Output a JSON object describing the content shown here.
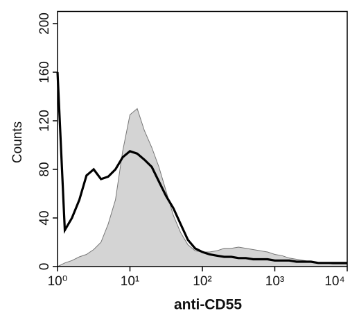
{
  "chart_data": {
    "type": "line",
    "xlabel": "anti-CD55",
    "ylabel": "Counts",
    "xscale": "log",
    "x": [
      1,
      1.26,
      1.58,
      2,
      2.51,
      3.16,
      3.98,
      5.01,
      6.31,
      7.94,
      10,
      12.6,
      15.8,
      20,
      25.1,
      31.6,
      39.8,
      50.1,
      63.1,
      79.4,
      100,
      126,
      158,
      200,
      251,
      316,
      398,
      501,
      631,
      794,
      1000,
      1259,
      1585,
      1995,
      2512,
      3162,
      3981,
      5012,
      6310,
      7943,
      10000
    ],
    "series": [
      {
        "color": "#777777",
        "fill": "#d4d4d4",
        "values": [
          0,
          3,
          5,
          8,
          10,
          14,
          20,
          35,
          55,
          95,
          125,
          130,
          112,
          98,
          82,
          62,
          42,
          28,
          18,
          13,
          12,
          12,
          13,
          15,
          15,
          16,
          15,
          14,
          13,
          12,
          10,
          9,
          7,
          6,
          5,
          4,
          3,
          3,
          2,
          2,
          2
        ]
      },
      {
        "color": "#000000",
        "values": [
          160,
          30,
          40,
          55,
          75,
          80,
          72,
          74,
          80,
          90,
          95,
          93,
          88,
          82,
          70,
          58,
          48,
          35,
          22,
          15,
          12,
          10,
          9,
          8,
          8,
          7,
          7,
          6,
          6,
          6,
          5,
          5,
          5,
          4,
          4,
          4,
          3,
          3,
          3,
          3,
          3
        ]
      }
    ],
    "xlim": [
      1,
      10000
    ],
    "xticks": [
      {
        "value": 1,
        "label": "10⁰"
      },
      {
        "value": 10,
        "label": "10¹"
      },
      {
        "value": 100,
        "label": "10²"
      },
      {
        "value": 1000,
        "label": "10³"
      },
      {
        "value": 10000,
        "label": "10⁴"
      }
    ],
    "ylim": [
      0,
      210
    ],
    "yticks": [
      0,
      40,
      80,
      120,
      160,
      200
    ]
  }
}
